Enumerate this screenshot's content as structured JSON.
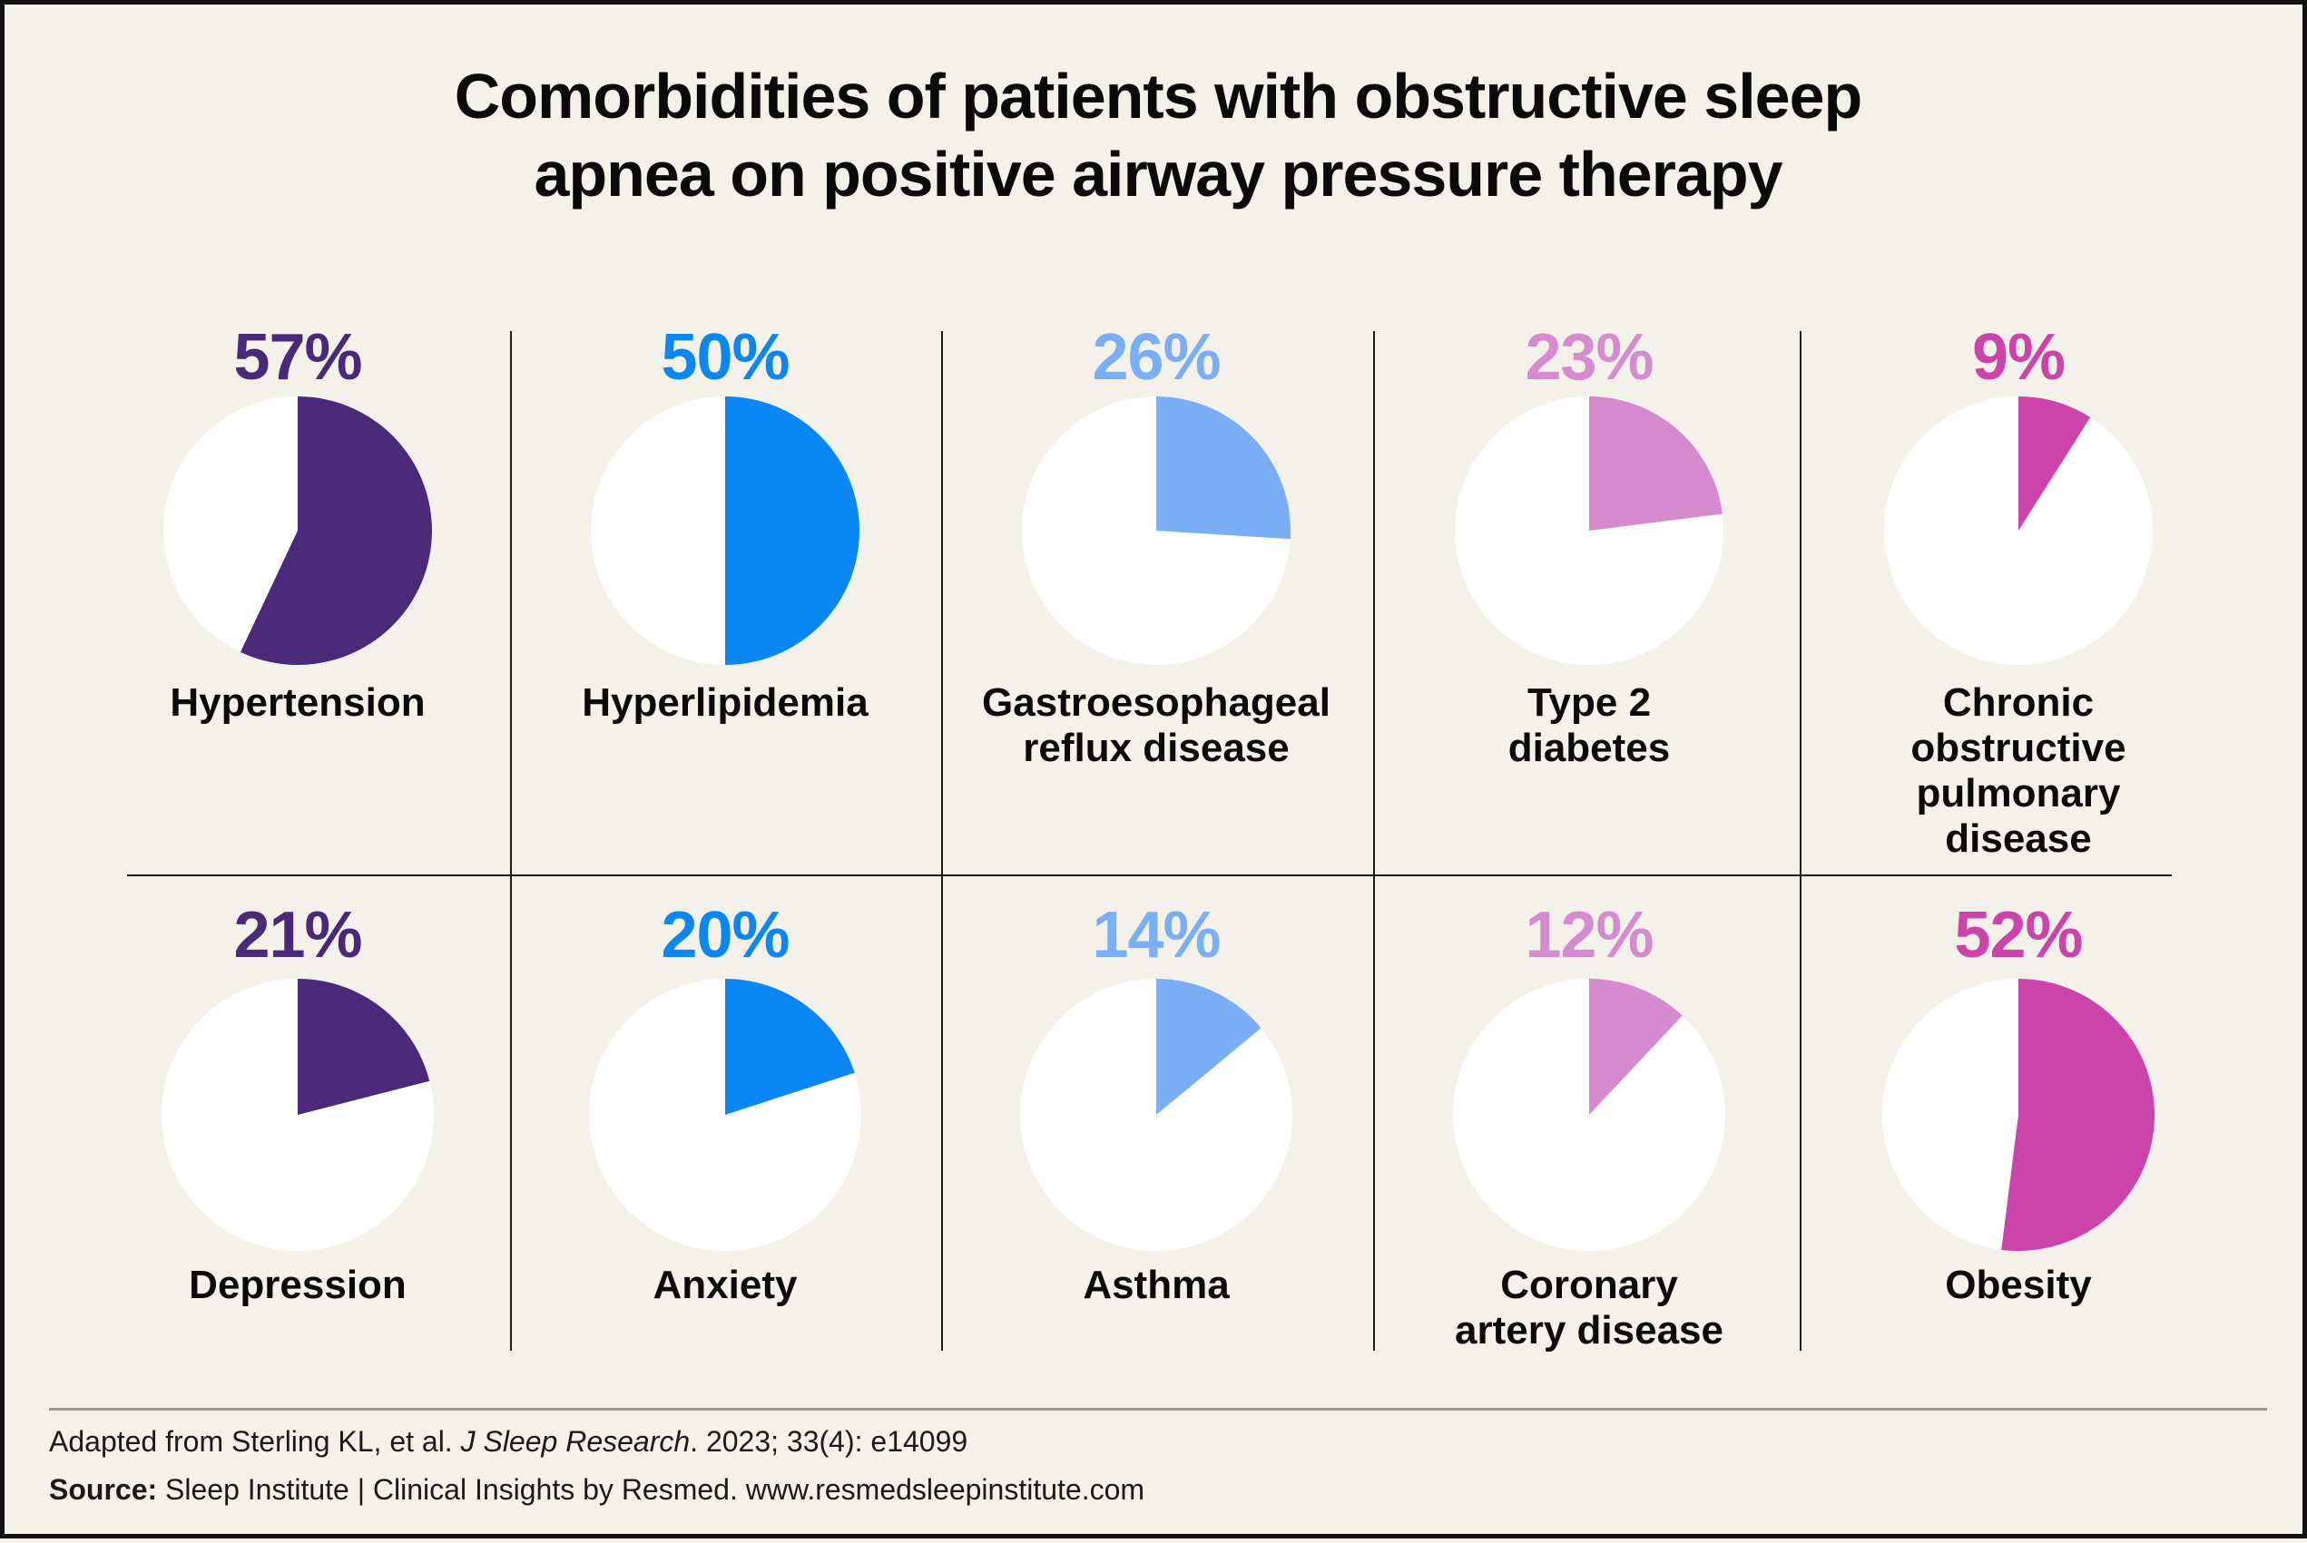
{
  "title_lines": [
    "Comorbidities of patients with obstructive sleep",
    "apnea on positive airway pressure therapy"
  ],
  "chart_data": {
    "type": "pie",
    "title": "Comorbidities of patients with obstructive sleep apnea on positive airway pressure therapy",
    "series": [
      {
        "name": "Hypertension",
        "label_lines": "Hypertension",
        "value": 57,
        "value_label": "57%",
        "color": "#4a2a78"
      },
      {
        "name": "Hyperlipidemia",
        "label_lines": "Hyperlipidemia",
        "value": 50,
        "value_label": "50%",
        "color": "#0a86f5"
      },
      {
        "name": "Gastroesophageal reflux disease",
        "label_lines": "Gastroesophageal\nreflux disease",
        "value": 26,
        "value_label": "26%",
        "color": "#7aaef6"
      },
      {
        "name": "Type 2 diabetes",
        "label_lines": "Type 2\ndiabetes",
        "value": 23,
        "value_label": "23%",
        "color": "#d68bcf"
      },
      {
        "name": "Chronic obstructive pulmonary disease",
        "label_lines": "Chronic\nobstructive\npulmonary\ndisease",
        "value": 9,
        "value_label": "9%",
        "color": "#cc44aa"
      },
      {
        "name": "Depression",
        "label_lines": "Depression",
        "value": 21,
        "value_label": "21%",
        "color": "#4a2a78"
      },
      {
        "name": "Anxiety",
        "label_lines": "Anxiety",
        "value": 20,
        "value_label": "20%",
        "color": "#0a86f5"
      },
      {
        "name": "Asthma",
        "label_lines": "Asthma",
        "value": 14,
        "value_label": "14%",
        "color": "#7aaef6"
      },
      {
        "name": "Coronary artery disease",
        "label_lines": "Coronary\nartery disease",
        "value": 12,
        "value_label": "12%",
        "color": "#d68bcf"
      },
      {
        "name": "Obesity",
        "label_lines": "Obesity",
        "value": 52,
        "value_label": "52%",
        "color": "#cc44aa"
      }
    ],
    "remainder_color": "#ffffff"
  },
  "footer": {
    "citation_prefix": "Adapted from Sterling KL, et al. ",
    "citation_journal": "J Sleep Research",
    "citation_suffix": ". 2023; 33(4): e14099",
    "source_label": "Source:",
    "source_text": " Sleep Institute | Clinical Insights by Resmed. www.resmedsleepinstitute.com"
  }
}
